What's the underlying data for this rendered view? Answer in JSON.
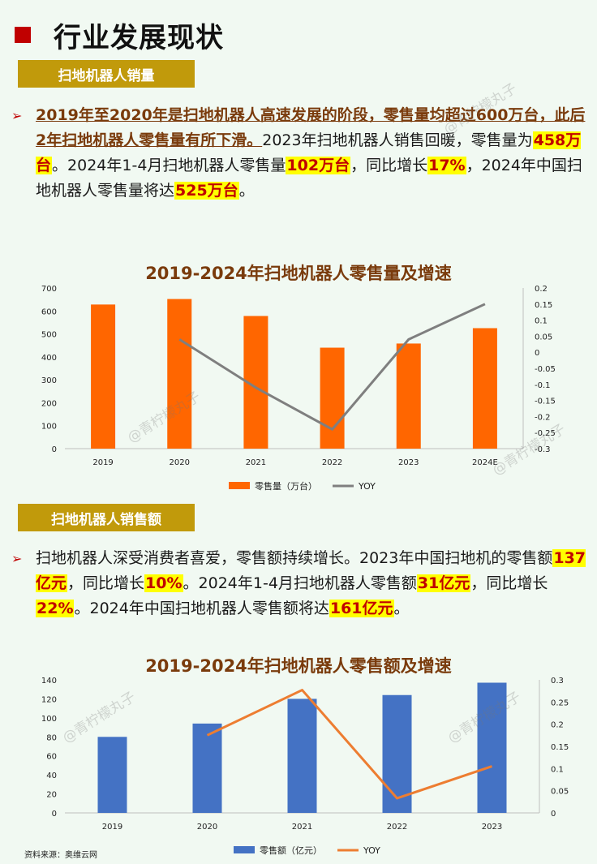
{
  "page_title": "行业发展现状",
  "section1": {
    "tag": "扫地机器人销量",
    "bullet": "➢",
    "p_bold": "2019年至2020年是扫地机器人高速发展的阶段，零售量均超过600万台，此后2年扫地机器人零售量有所下滑。",
    "p_a": "2023年扫地机器人销售回暖，零售量为",
    "p_h1": "458万台",
    "p_b": "。2024年1-4月扫地机器人零售量",
    "p_h2": "102万台",
    "p_c": "，同比增长",
    "p_h3": "17%",
    "p_d": "，2024年中国扫地机器人零售量将达",
    "p_h4": "525万台",
    "p_e": "。"
  },
  "section2": {
    "tag": "扫地机器人销售额",
    "bullet": "➢",
    "p_a": "扫地机器人深受消费者喜爱，零售额持续增长。2023年中国扫地机的零售额",
    "p_h1": "137亿元",
    "p_b": "，同比增长",
    "p_h2": "10%",
    "p_c": "。2024年1-4月扫地机器人零售额",
    "p_h3": "31亿元",
    "p_d": "，同比增长",
    "p_h4": "22%",
    "p_e": "。2024年中国扫地机器人零售额将达",
    "p_h5": "161亿元",
    "p_f": "。"
  },
  "source": "资料来源：奥维云网",
  "watermark": "@青柠檬丸子",
  "colors": {
    "accent_red": "#c00000",
    "tag_gold": "#c19a0b",
    "bar_orange": "#ff6600",
    "bar_blue": "#4472c4",
    "line_gray": "#7f7f7f",
    "line_orange": "#ed7d31",
    "title_brown": "#7a3b0c",
    "highlight": "#ffff00"
  },
  "chart_data": [
    {
      "type": "bar",
      "title": "2019-2024年扫地机器人零售量及增速",
      "categories": [
        "2019",
        "2020",
        "2021",
        "2022",
        "2023",
        "2024E"
      ],
      "series": [
        {
          "name": "零售量（万台）",
          "type": "bar",
          "axis": "left",
          "values": [
            628,
            652,
            578,
            440,
            458,
            525
          ]
        },
        {
          "name": "YOY",
          "type": "line",
          "axis": "right",
          "values": [
            null,
            0.04,
            -0.11,
            -0.24,
            0.04,
            0.15
          ]
        }
      ],
      "ylim": [
        0,
        700
      ],
      "yticks": [
        "0",
        "100",
        "200",
        "300",
        "400",
        "500",
        "600",
        "700"
      ],
      "y2lim": [
        -0.3,
        0.2
      ],
      "y2ticks": [
        "-0.3",
        "-0.25",
        "-0.2",
        "-0.15",
        "-0.1",
        "-0.05",
        "0",
        "0.05",
        "0.1",
        "0.15",
        "0.2"
      ],
      "legend": "bottom"
    },
    {
      "type": "bar",
      "title": "2019-2024年扫地机器人零售额及增速",
      "categories": [
        "2019",
        "2020",
        "2021",
        "2022",
        "2023"
      ],
      "series": [
        {
          "name": "零售额（亿元）",
          "type": "bar",
          "axis": "left",
          "values": [
            80,
            94,
            120,
            124,
            137
          ]
        },
        {
          "name": "YOY",
          "type": "line",
          "axis": "right",
          "values": [
            null,
            0.175,
            0.277,
            0.033,
            0.105
          ]
        }
      ],
      "ylim": [
        0,
        140
      ],
      "yticks": [
        "0",
        "20",
        "40",
        "60",
        "80",
        "100",
        "120",
        "140"
      ],
      "y2lim": [
        0,
        0.3
      ],
      "y2ticks": [
        "0",
        "0.05",
        "0.1",
        "0.15",
        "0.2",
        "0.25",
        "0.3"
      ],
      "legend": "bottom"
    }
  ]
}
